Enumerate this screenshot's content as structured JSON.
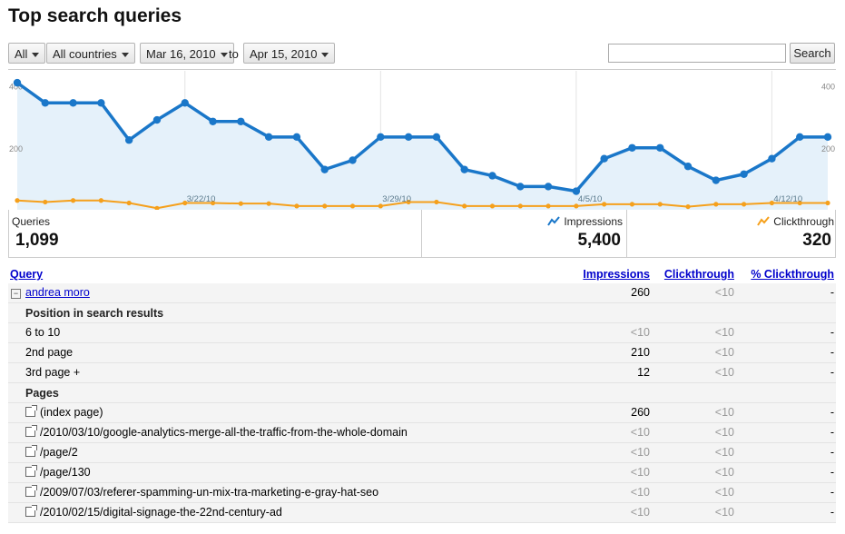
{
  "page": {
    "title": "Top search queries"
  },
  "filters": {
    "search_type": "All",
    "country": "All countries",
    "date_from": "Mar 16, 2010",
    "to_label": "to",
    "date_to": "Apr 15, 2010",
    "search_button": "Search",
    "search_value": ""
  },
  "chart_data": {
    "type": "line",
    "x": [
      "3/16/10",
      "3/17/10",
      "3/18/10",
      "3/19/10",
      "3/20/10",
      "3/21/10",
      "3/22/10",
      "3/23/10",
      "3/24/10",
      "3/25/10",
      "3/26/10",
      "3/27/10",
      "3/28/10",
      "3/29/10",
      "3/30/10",
      "3/31/10",
      "4/1/10",
      "4/2/10",
      "4/3/10",
      "4/4/10",
      "4/5/10",
      "4/6/10",
      "4/7/10",
      "4/8/10",
      "4/9/10",
      "4/10/10",
      "4/11/10",
      "4/12/10",
      "4/13/10",
      "4/14/10"
    ],
    "tick_labels": [
      "3/22/10",
      "3/29/10",
      "4/5/10",
      "4/12/10"
    ],
    "y_ticks": [
      "400",
      "200"
    ],
    "ylim": [
      0,
      425
    ],
    "series": [
      {
        "name": "Impressions",
        "color": "#1a77c9",
        "values": [
          410,
          345,
          345,
          345,
          225,
          290,
          345,
          285,
          285,
          235,
          235,
          130,
          160,
          235,
          235,
          235,
          130,
          110,
          75,
          75,
          60,
          165,
          200,
          200,
          140,
          95,
          115,
          165,
          235,
          235
        ]
      },
      {
        "name": "Clickthrough",
        "color": "#f5a01c",
        "values": [
          30,
          25,
          30,
          30,
          22,
          5,
          22,
          22,
          20,
          20,
          12,
          12,
          12,
          12,
          25,
          25,
          12,
          12,
          12,
          12,
          12,
          18,
          18,
          18,
          10,
          18,
          18,
          22,
          22,
          22
        ]
      }
    ],
    "grid": true
  },
  "summary": {
    "queries_label": "Queries",
    "queries_value": "1,099",
    "impressions_label": "Impressions",
    "impressions_value": "5,400",
    "clickthrough_label": "Clickthrough",
    "clickthrough_value": "320"
  },
  "table": {
    "headers": {
      "query": "Query",
      "impressions": "Impressions",
      "clickthrough": "Clickthrough",
      "pct_clickthrough": "% Clickthrough"
    },
    "query_row": {
      "query": "andrea moro",
      "impressions": "260",
      "clickthrough": "<10",
      "pct": "-"
    },
    "position_heading": "Position in search results",
    "positions": [
      {
        "label": "6 to 10",
        "impressions": "<10",
        "clickthrough": "<10",
        "pct": "-"
      },
      {
        "label": "2nd page",
        "impressions": "210",
        "clickthrough": "<10",
        "pct": "-"
      },
      {
        "label": "3rd page +",
        "impressions": "12",
        "clickthrough": "<10",
        "pct": "-"
      }
    ],
    "pages_heading": "Pages",
    "pages": [
      {
        "label": "(index page)",
        "impressions": "260",
        "clickthrough": "<10",
        "pct": "-"
      },
      {
        "label": "/2010/03/10/google-analytics-merge-all-the-traffic-from-the-whole-domain",
        "impressions": "<10",
        "clickthrough": "<10",
        "pct": "-"
      },
      {
        "label": "/page/2",
        "impressions": "<10",
        "clickthrough": "<10",
        "pct": "-"
      },
      {
        "label": "/page/130",
        "impressions": "<10",
        "clickthrough": "<10",
        "pct": "-"
      },
      {
        "label": "/2009/07/03/referer-spamming-un-mix-tra-marketing-e-gray-hat-seo",
        "impressions": "<10",
        "clickthrough": "<10",
        "pct": "-"
      },
      {
        "label": "/2010/02/15/digital-signage-the-22nd-century-ad",
        "impressions": "<10",
        "clickthrough": "<10",
        "pct": "-"
      }
    ]
  }
}
